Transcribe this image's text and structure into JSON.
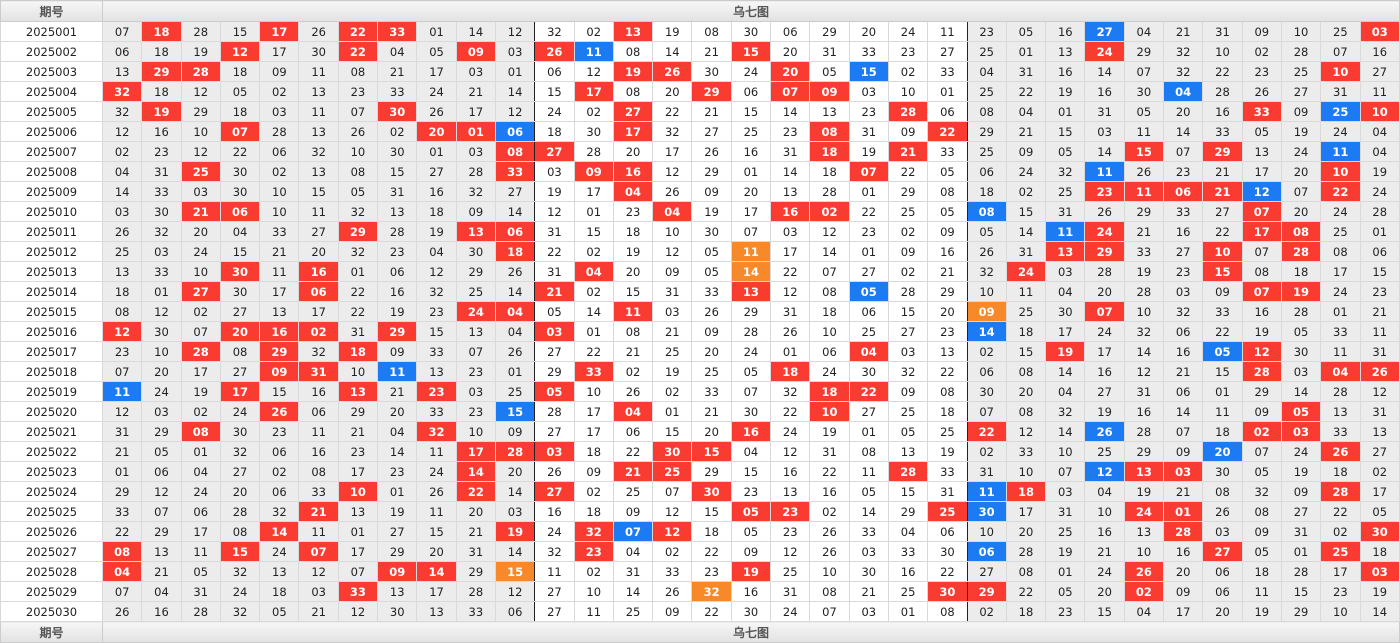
{
  "header": {
    "period_label": "期号",
    "chart_label": "乌七图"
  },
  "footer": {
    "period_label": "期号",
    "chart_label": "乌七图"
  },
  "colors": {
    "red": "#fa3b31",
    "blue": "#1c7bf2",
    "orange": "#f7892a"
  },
  "rows": [
    {
      "period": "2025001",
      "nums": [
        "07",
        "18",
        "28",
        "15",
        "17",
        "26",
        "22",
        "33",
        "01",
        "14",
        "12",
        "32",
        "02",
        "13",
        "19",
        "08",
        "30",
        "06",
        "29",
        "20",
        "24",
        "11",
        "23",
        "05",
        "16",
        "27",
        "04",
        "21",
        "31",
        "09",
        "10",
        "25",
        "03"
      ],
      "marks": "-r--r-rr-----r-----------b------r"
    },
    {
      "period": "2025002",
      "nums": [
        "06",
        "18",
        "19",
        "12",
        "17",
        "30",
        "22",
        "04",
        "05",
        "09",
        "03",
        "26",
        "11",
        "08",
        "14",
        "21",
        "15",
        "20",
        "31",
        "33",
        "23",
        "27",
        "25",
        "01",
        "13",
        "24",
        "29",
        "32",
        "10",
        "02",
        "28",
        "07",
        "16"
      ],
      "marks": "---r--r--r-rb---r--------r-------"
    },
    {
      "period": "2025003",
      "nums": [
        "13",
        "29",
        "28",
        "18",
        "09",
        "11",
        "08",
        "21",
        "17",
        "03",
        "01",
        "06",
        "12",
        "19",
        "26",
        "30",
        "24",
        "20",
        "05",
        "15",
        "02",
        "33",
        "04",
        "31",
        "16",
        "14",
        "07",
        "32",
        "22",
        "23",
        "25",
        "10",
        "27"
      ],
      "marks": "-rr----------rr--r-b-----------r-"
    },
    {
      "period": "2025004",
      "nums": [
        "32",
        "18",
        "12",
        "05",
        "02",
        "13",
        "23",
        "33",
        "24",
        "21",
        "14",
        "15",
        "17",
        "08",
        "20",
        "29",
        "06",
        "07",
        "09",
        "03",
        "10",
        "01",
        "25",
        "22",
        "19",
        "16",
        "30",
        "04",
        "28",
        "26",
        "27",
        "31",
        "11"
      ],
      "marks": "r-----------r--r-rr--------b-----"
    },
    {
      "period": "2025005",
      "nums": [
        "32",
        "19",
        "29",
        "18",
        "03",
        "11",
        "07",
        "30",
        "26",
        "17",
        "12",
        "24",
        "02",
        "27",
        "22",
        "21",
        "15",
        "14",
        "13",
        "23",
        "28",
        "06",
        "08",
        "04",
        "01",
        "31",
        "05",
        "20",
        "16",
        "33",
        "09",
        "25",
        "10"
      ],
      "marks": "-r-----r-----r------r--------r-br"
    },
    {
      "period": "2025006",
      "nums": [
        "12",
        "16",
        "10",
        "07",
        "28",
        "13",
        "26",
        "02",
        "20",
        "01",
        "06",
        "18",
        "30",
        "17",
        "32",
        "27",
        "25",
        "23",
        "08",
        "31",
        "09",
        "22",
        "29",
        "21",
        "15",
        "03",
        "11",
        "14",
        "33",
        "05",
        "19",
        "24",
        "04"
      ],
      "marks": "---r----rrb--r----r--r-----------"
    },
    {
      "period": "2025007",
      "nums": [
        "02",
        "23",
        "12",
        "22",
        "06",
        "32",
        "10",
        "30",
        "01",
        "03",
        "08",
        "27",
        "28",
        "20",
        "17",
        "26",
        "16",
        "31",
        "18",
        "19",
        "21",
        "33",
        "25",
        "09",
        "05",
        "14",
        "15",
        "07",
        "29",
        "13",
        "24",
        "11",
        "04"
      ],
      "marks": "----------rr------r-r-----r-r--b-"
    },
    {
      "period": "2025008",
      "nums": [
        "04",
        "31",
        "25",
        "30",
        "02",
        "13",
        "08",
        "15",
        "27",
        "28",
        "33",
        "03",
        "09",
        "16",
        "12",
        "29",
        "01",
        "14",
        "18",
        "07",
        "22",
        "05",
        "06",
        "24",
        "32",
        "11",
        "26",
        "23",
        "21",
        "17",
        "20",
        "10",
        "19"
      ],
      "marks": "--r-------r-rr-----r-----b-----r--"
    },
    {
      "period": "2025009",
      "nums": [
        "14",
        "33",
        "03",
        "30",
        "10",
        "15",
        "05",
        "31",
        "16",
        "32",
        "27",
        "19",
        "17",
        "04",
        "26",
        "09",
        "20",
        "13",
        "28",
        "01",
        "29",
        "08",
        "18",
        "02",
        "25",
        "23",
        "11",
        "06",
        "21",
        "12",
        "07",
        "22",
        "24"
      ],
      "marks": "-------------r-----------rrrrb-r---"
    },
    {
      "period": "2025010",
      "nums": [
        "03",
        "30",
        "21",
        "06",
        "10",
        "11",
        "32",
        "13",
        "18",
        "09",
        "14",
        "12",
        "01",
        "23",
        "04",
        "19",
        "17",
        "16",
        "02",
        "22",
        "25",
        "05",
        "08",
        "15",
        "31",
        "26",
        "29",
        "33",
        "27",
        "07",
        "20",
        "24",
        "28"
      ],
      "marks": "--rr----------r--rr---b------r---"
    },
    {
      "period": "2025011",
      "nums": [
        "26",
        "32",
        "20",
        "04",
        "33",
        "27",
        "29",
        "28",
        "19",
        "13",
        "06",
        "31",
        "15",
        "18",
        "10",
        "30",
        "07",
        "03",
        "12",
        "23",
        "02",
        "09",
        "05",
        "14",
        "11",
        "24",
        "21",
        "16",
        "22",
        "17",
        "08",
        "25",
        "01"
      ],
      "marks": "------r--rr-------------br---rr---"
    },
    {
      "period": "2025012",
      "nums": [
        "25",
        "03",
        "24",
        "15",
        "21",
        "20",
        "32",
        "23",
        "04",
        "30",
        "18",
        "22",
        "02",
        "19",
        "12",
        "05",
        "11",
        "17",
        "14",
        "01",
        "09",
        "16",
        "26",
        "31",
        "13",
        "29",
        "33",
        "27",
        "10",
        "07",
        "28",
        "08",
        "06"
      ],
      "marks": "----------r-----o-------rr--r-r---"
    },
    {
      "period": "2025013",
      "nums": [
        "13",
        "33",
        "10",
        "30",
        "11",
        "16",
        "01",
        "06",
        "12",
        "29",
        "26",
        "31",
        "04",
        "20",
        "09",
        "05",
        "14",
        "22",
        "07",
        "27",
        "02",
        "21",
        "32",
        "24",
        "03",
        "28",
        "19",
        "23",
        "15",
        "08",
        "18",
        "17",
        "15"
      ],
      "marks": "---r-r------r---o------r----r----"
    },
    {
      "period": "2025014",
      "nums": [
        "18",
        "01",
        "27",
        "30",
        "17",
        "06",
        "22",
        "16",
        "32",
        "25",
        "14",
        "21",
        "02",
        "15",
        "31",
        "33",
        "13",
        "12",
        "08",
        "05",
        "28",
        "29",
        "10",
        "11",
        "04",
        "20",
        "28",
        "03",
        "09",
        "07",
        "19",
        "24",
        "23"
      ],
      "marks": "--r--r-----r----r--b---------rr----"
    },
    {
      "period": "2025015",
      "nums": [
        "08",
        "12",
        "02",
        "27",
        "13",
        "17",
        "22",
        "19",
        "23",
        "24",
        "04",
        "05",
        "14",
        "11",
        "03",
        "26",
        "29",
        "31",
        "18",
        "06",
        "15",
        "20",
        "09",
        "25",
        "30",
        "07",
        "10",
        "32",
        "33",
        "16",
        "28",
        "01",
        "21"
      ],
      "marks": "---------rr--r--------o--r-------r---"
    },
    {
      "period": "2025016",
      "nums": [
        "12",
        "30",
        "07",
        "20",
        "16",
        "02",
        "31",
        "29",
        "15",
        "13",
        "04",
        "03",
        "01",
        "08",
        "21",
        "09",
        "28",
        "26",
        "10",
        "25",
        "27",
        "23",
        "14",
        "18",
        "17",
        "24",
        "32",
        "06",
        "22",
        "19",
        "05",
        "33",
        "11"
      ],
      "marks": "r--rrr-r---r----------b----------"
    },
    {
      "period": "2025017",
      "nums": [
        "23",
        "10",
        "28",
        "08",
        "29",
        "32",
        "18",
        "09",
        "33",
        "07",
        "26",
        "27",
        "22",
        "21",
        "25",
        "20",
        "24",
        "01",
        "06",
        "04",
        "03",
        "13",
        "02",
        "15",
        "19",
        "17",
        "14",
        "16",
        "05",
        "12",
        "30",
        "11",
        "31"
      ],
      "marks": "--r-r-r------------r----r---br---"
    },
    {
      "period": "2025018",
      "nums": [
        "07",
        "20",
        "17",
        "27",
        "09",
        "31",
        "10",
        "11",
        "13",
        "23",
        "01",
        "29",
        "33",
        "02",
        "19",
        "25",
        "05",
        "18",
        "24",
        "30",
        "32",
        "22",
        "06",
        "08",
        "14",
        "16",
        "12",
        "21",
        "15",
        "28",
        "03",
        "04",
        "26"
      ],
      "marks": "----rr-b----r----r-----------r-rr--"
    },
    {
      "period": "2025019",
      "nums": [
        "11",
        "24",
        "19",
        "17",
        "15",
        "16",
        "13",
        "21",
        "23",
        "03",
        "25",
        "05",
        "10",
        "26",
        "02",
        "33",
        "07",
        "32",
        "18",
        "22",
        "09",
        "08",
        "30",
        "20",
        "04",
        "27",
        "31",
        "06",
        "01",
        "29",
        "14",
        "28",
        "12"
      ],
      "marks": "b--r--r-r--r------rr-------------"
    },
    {
      "period": "2025020",
      "nums": [
        "12",
        "03",
        "02",
        "24",
        "26",
        "06",
        "29",
        "20",
        "33",
        "23",
        "15",
        "28",
        "17",
        "04",
        "01",
        "21",
        "30",
        "22",
        "10",
        "27",
        "25",
        "18",
        "07",
        "08",
        "32",
        "19",
        "16",
        "14",
        "11",
        "09",
        "05",
        "13",
        "31"
      ],
      "marks": "----r-----b--r----r-----------r--r-"
    },
    {
      "period": "2025021",
      "nums": [
        "31",
        "29",
        "08",
        "30",
        "23",
        "11",
        "21",
        "04",
        "32",
        "10",
        "09",
        "27",
        "17",
        "06",
        "15",
        "20",
        "16",
        "24",
        "19",
        "01",
        "05",
        "25",
        "22",
        "12",
        "14",
        "26",
        "28",
        "07",
        "18",
        "02",
        "03",
        "33",
        "13"
      ],
      "marks": "--r-----r-------r-----r--b---rr----"
    },
    {
      "period": "2025022",
      "nums": [
        "21",
        "05",
        "01",
        "32",
        "06",
        "16",
        "23",
        "14",
        "11",
        "17",
        "28",
        "03",
        "18",
        "22",
        "30",
        "15",
        "04",
        "12",
        "31",
        "08",
        "13",
        "19",
        "02",
        "33",
        "10",
        "25",
        "29",
        "09",
        "20",
        "07",
        "24",
        "26",
        "27"
      ],
      "marks": "---------rrr--rr------------b--r-----"
    },
    {
      "period": "2025023",
      "nums": [
        "01",
        "06",
        "04",
        "27",
        "02",
        "08",
        "17",
        "23",
        "24",
        "14",
        "20",
        "26",
        "09",
        "21",
        "25",
        "29",
        "15",
        "16",
        "22",
        "11",
        "28",
        "33",
        "31",
        "10",
        "07",
        "12",
        "13",
        "03",
        "30",
        "05",
        "19",
        "18",
        "02"
      ],
      "marks": "---------r---rr-----r----brr-------"
    },
    {
      "period": "2025024",
      "nums": [
        "29",
        "12",
        "24",
        "20",
        "06",
        "33",
        "10",
        "01",
        "26",
        "22",
        "14",
        "27",
        "02",
        "25",
        "07",
        "30",
        "23",
        "13",
        "16",
        "05",
        "15",
        "31",
        "11",
        "18",
        "03",
        "04",
        "19",
        "21",
        "08",
        "32",
        "09",
        "28",
        "17"
      ],
      "marks": "------r--r-r---r------br-------r---"
    },
    {
      "period": "2025025",
      "nums": [
        "33",
        "07",
        "06",
        "28",
        "32",
        "21",
        "13",
        "19",
        "11",
        "20",
        "03",
        "16",
        "18",
        "09",
        "12",
        "15",
        "05",
        "23",
        "02",
        "14",
        "29",
        "25",
        "30",
        "17",
        "31",
        "10",
        "24",
        "01",
        "26",
        "08",
        "27",
        "22",
        "05"
      ],
      "marks": "-----r----------rr---rb---rr--------"
    },
    {
      "period": "2025026",
      "nums": [
        "22",
        "29",
        "17",
        "08",
        "14",
        "11",
        "01",
        "27",
        "15",
        "21",
        "19",
        "24",
        "32",
        "07",
        "12",
        "18",
        "05",
        "23",
        "26",
        "33",
        "04",
        "06",
        "10",
        "20",
        "25",
        "16",
        "13",
        "28",
        "03",
        "09",
        "31",
        "02",
        "30"
      ],
      "marks": "----r-----r-rbr------------r----r---"
    },
    {
      "period": "2025027",
      "nums": [
        "08",
        "13",
        "11",
        "15",
        "24",
        "07",
        "17",
        "29",
        "20",
        "31",
        "14",
        "32",
        "23",
        "04",
        "02",
        "22",
        "09",
        "12",
        "26",
        "03",
        "33",
        "30",
        "06",
        "28",
        "19",
        "21",
        "10",
        "16",
        "27",
        "05",
        "01",
        "25",
        "18"
      ],
      "marks": "r--r-r------r---------b-----r--r---"
    },
    {
      "period": "2025028",
      "nums": [
        "04",
        "21",
        "05",
        "32",
        "13",
        "12",
        "07",
        "09",
        "14",
        "29",
        "15",
        "11",
        "02",
        "31",
        "33",
        "23",
        "19",
        "25",
        "10",
        "30",
        "16",
        "22",
        "27",
        "08",
        "01",
        "24",
        "26",
        "20",
        "06",
        "18",
        "28",
        "17",
        "03"
      ],
      "marks": "r------rr-o-----r---------r-----r----"
    },
    {
      "period": "2025029",
      "nums": [
        "07",
        "04",
        "31",
        "24",
        "18",
        "03",
        "33",
        "13",
        "17",
        "28",
        "12",
        "27",
        "10",
        "14",
        "26",
        "32",
        "16",
        "31",
        "08",
        "21",
        "25",
        "30",
        "29",
        "22",
        "05",
        "20",
        "02",
        "09",
        "06",
        "11",
        "15",
        "23",
        "19"
      ],
      "marks": "------r--------o-----rr---r------r---"
    },
    {
      "period": "2025030",
      "nums": [
        "26",
        "16",
        "28",
        "32",
        "05",
        "21",
        "12",
        "30",
        "13",
        "33",
        "06",
        "27",
        "11",
        "25",
        "09",
        "22",
        "30",
        "24",
        "07",
        "03",
        "01",
        "08",
        "02",
        "18",
        "23",
        "15",
        "04",
        "17",
        "20",
        "19",
        "29",
        "10",
        "14"
      ],
      "marks": "---------------------------------"
    }
  ]
}
